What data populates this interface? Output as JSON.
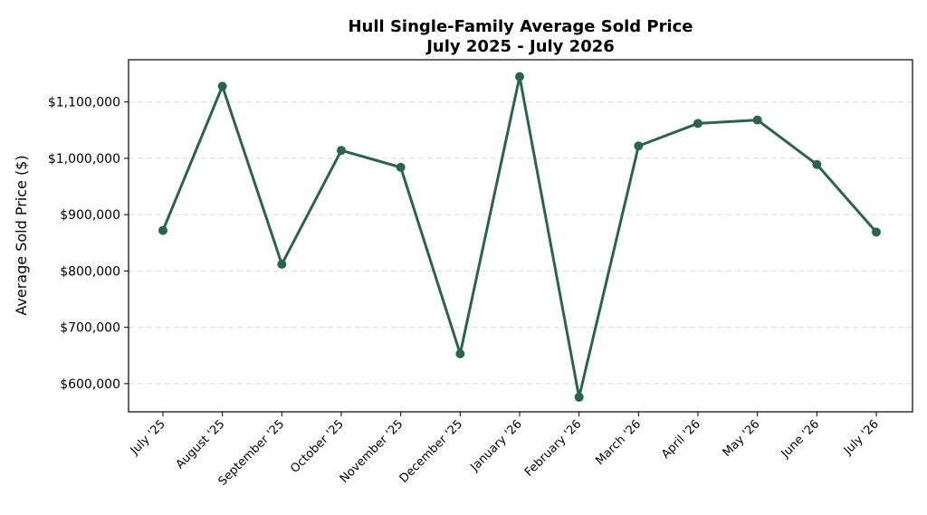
{
  "chart_data": {
    "type": "line",
    "title_line1": "Hull Single-Family Average Sold Price",
    "title_line2": "July 2025 - July 2026",
    "ylabel": "Average Sold Price ($)",
    "xlabel": "",
    "categories": [
      "July '25",
      "August '25",
      "September '25",
      "October '25",
      "November '25",
      "December '25",
      "January '26",
      "February '26",
      "March '26",
      "April '26",
      "May '26",
      "June '26",
      "July '26"
    ],
    "series": [
      {
        "values": [
          872000,
          1128000,
          812000,
          1014000,
          984000,
          653000,
          1145000,
          576000,
          1022000,
          1062000,
          1068000,
          989000,
          869000
        ]
      }
    ],
    "y_ticks": [
      600000,
      700000,
      800000,
      900000,
      1000000,
      1100000
    ],
    "y_tick_labels": [
      "$600,000",
      "$700,000",
      "$800,000",
      "$900,000",
      "$1,000,000",
      "$1,100,000"
    ],
    "ylim": [
      550000,
      1175000
    ],
    "grid": "horizontal dashed",
    "line_color": "#2a6549",
    "marker": "circle"
  }
}
